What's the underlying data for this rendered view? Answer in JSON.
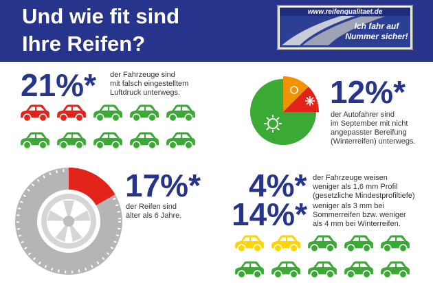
{
  "header": {
    "title_lines": [
      "Und wie fit sind",
      "Ihre Reifen?"
    ]
  },
  "logo": {
    "url": "www.reifenqualitaet.de",
    "slogan_lines": [
      "Ich fahr auf",
      "Nummer sicher!"
    ]
  },
  "stats": [
    {
      "figure": "21%*",
      "lines": [
        "der Fahrzeuge sind",
        "mit falsch eingestelltem",
        "Luftdruck unterwegs."
      ]
    },
    {
      "figure": "12%*",
      "lines": [
        "der Autofahrer sind",
        "im September mit nicht",
        "angepasster Bereifung",
        "(Winterreifen) unterwegs."
      ]
    },
    {
      "figure": "17%*",
      "lines": [
        "der Reifen sind",
        "älter als 6 Jahre."
      ]
    },
    {
      "figure": "4%*",
      "lines": [
        "der Fahrzeuge weisen",
        "weniger als 1,6 mm  Profil",
        "(gesetzliche Mindestprofiltiefe)"
      ]
    },
    {
      "figure": "14%*",
      "lines": [
        "weniger als 3 mm bei",
        "Sommerreifen bzw. weniger",
        "als 4 mm bei Winterreifen."
      ]
    }
  ]
}
